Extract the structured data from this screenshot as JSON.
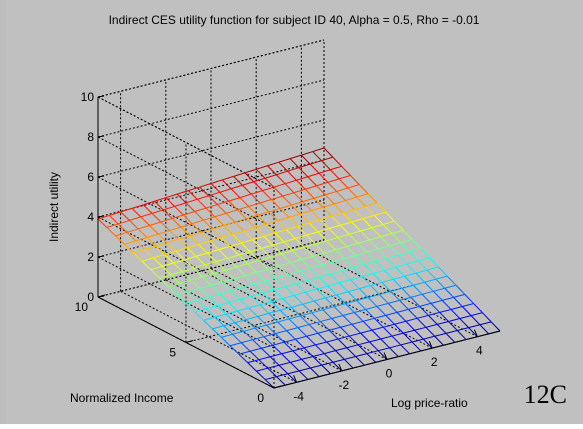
{
  "panel_label": "12C",
  "chart_data": {
    "type": "surface",
    "title": "Indirect CES utility function for subject ID 40,   Alpha = 0.5,   Rho = -0.01",
    "xlabel": "Log price-ratio",
    "ylabel": "Normalized Income",
    "zlabel": "Indirect utility",
    "xlim": [
      -5,
      5
    ],
    "ylim": [
      0,
      10
    ],
    "zlim": [
      0,
      10
    ],
    "xticks": [
      "-4",
      "-2",
      "0",
      "2",
      "4"
    ],
    "yticks": [
      "0",
      "5",
      "10"
    ],
    "zticks": [
      "0",
      "2",
      "4",
      "6",
      "8",
      "10"
    ],
    "grid": true,
    "colormap": "jet",
    "surface": {
      "description_values": "Indirect utility rises linearly with normalized income (0 at income 0, about 4 at income 10) and increases slightly with log price-ratio",
      "x_range": [
        -5,
        5
      ],
      "y_range": [
        0,
        10
      ],
      "z_at_y10_xmin": 3.9,
      "z_at_y10_xmax": 4.6,
      "x_steps": 20,
      "y_steps": 20
    }
  }
}
